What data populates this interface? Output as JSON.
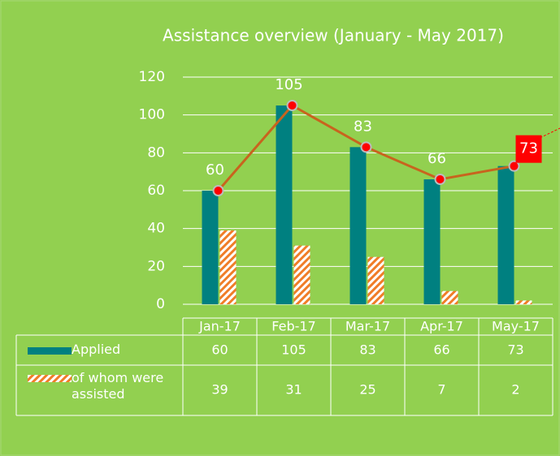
{
  "chart_data": {
    "type": "bar",
    "title": "Assistance overview (January - May 2017)",
    "categories": [
      "Jan-17",
      "Feb-17",
      "Mar-17",
      "Apr-17",
      "May-17"
    ],
    "series": [
      {
        "name": "Applied",
        "color": "#008080",
        "values": [
          60,
          105,
          83,
          66,
          73
        ],
        "line_color": "#c8641e",
        "marker_color": "#ff0000",
        "highlight_index": 4,
        "highlight_color": "#ff0000"
      },
      {
        "name": "of whom were assisted",
        "color": "#f07d28",
        "pattern": "hatch",
        "values": [
          39,
          31,
          25,
          7,
          2
        ]
      }
    ],
    "ylim": [
      0,
      120
    ],
    "yticks": [
      0,
      20,
      40,
      60,
      80,
      100,
      120
    ],
    "grid": true
  }
}
